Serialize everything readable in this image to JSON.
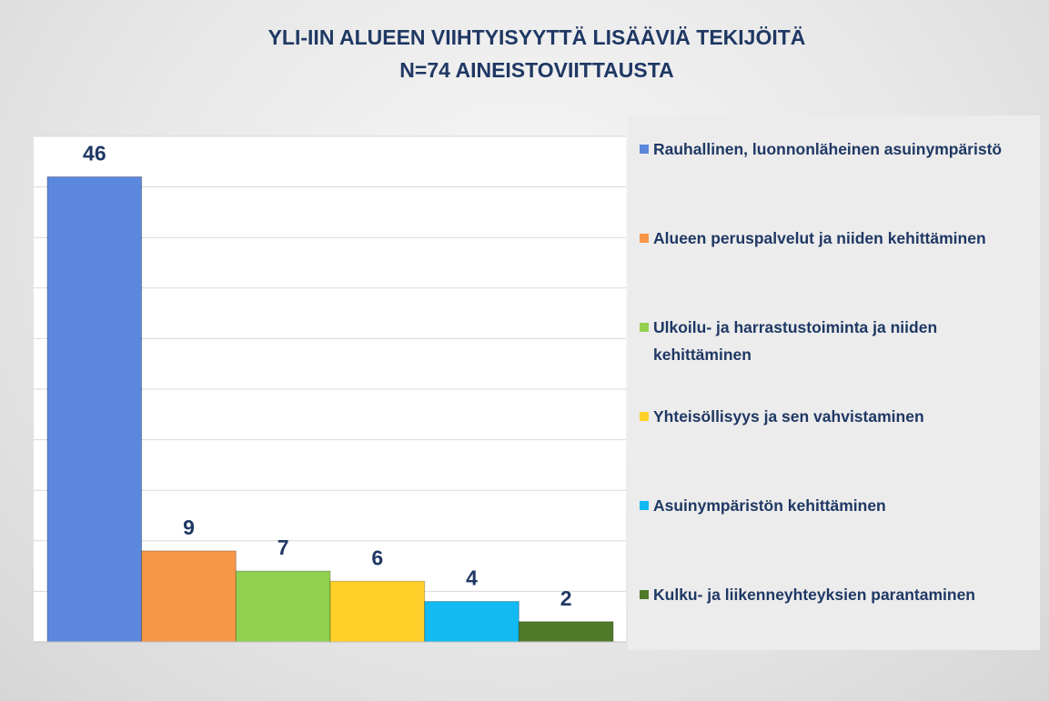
{
  "chart_data": {
    "type": "bar",
    "title": "YLI-IIN ALUEEN VIIHTYISYYTTÄ LISÄÄVIÄ TEKIJÖITÄ",
    "subtitle": "N=74 AINEISTOVIITTAUSTA",
    "series": [
      {
        "name": "Rauhallinen, luonnonläheinen asuinympäristö",
        "color": "#5b87dc",
        "values": [
          46
        ]
      },
      {
        "name": "Alueen peruspalvelut ja niiden kehittäminen",
        "color": "#f79646",
        "values": [
          9
        ]
      },
      {
        "name": "Ulkoilu- ja harrastustoiminta ja niiden kehittäminen",
        "color": "#92d050",
        "values": [
          7
        ]
      },
      {
        "name": "Yhteisöllisyys ja sen vahvistaminen",
        "color": "#ffd02a",
        "values": [
          6
        ]
      },
      {
        "name": "Asuinympäristön kehittäminen",
        "color": "#12b9f2",
        "values": [
          4
        ]
      },
      {
        "name": "Kulku- ja liikenneyhteyksien parantaminen",
        "color": "#4f7a28",
        "values": [
          2
        ]
      }
    ],
    "ylim": [
      0,
      50
    ],
    "yticks": [
      0,
      5,
      10,
      15,
      20,
      25,
      30,
      35,
      40,
      45,
      50
    ],
    "grid": true,
    "legend": "right"
  }
}
